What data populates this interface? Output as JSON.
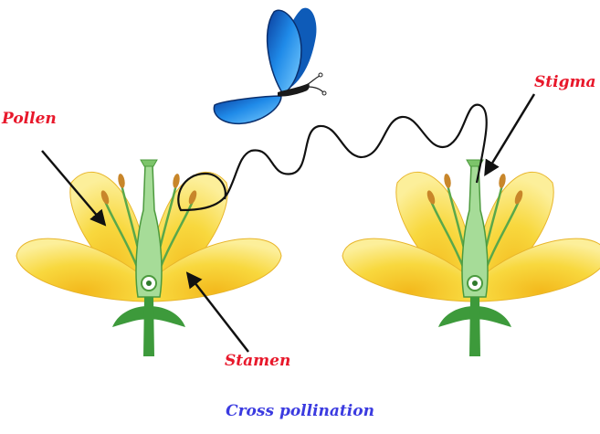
{
  "labels": {
    "pollen": "Pollen",
    "stigma": "Stigma",
    "stamen": "Stamen"
  },
  "caption": "Cross pollination",
  "icons": {
    "butterfly": "butterfly-icon",
    "left_flower": "flower-icon",
    "right_flower": "flower-icon"
  },
  "colors": {
    "label": "#e8182b",
    "caption": "#3b3be0",
    "petal": "#f6d23a",
    "petal_light": "#fbe98a",
    "stem": "#3d9a3b",
    "pistil": "#9ad48c",
    "anther": "#c8862a",
    "butterfly": "#1f7fe0",
    "flight_path": "#111111"
  }
}
